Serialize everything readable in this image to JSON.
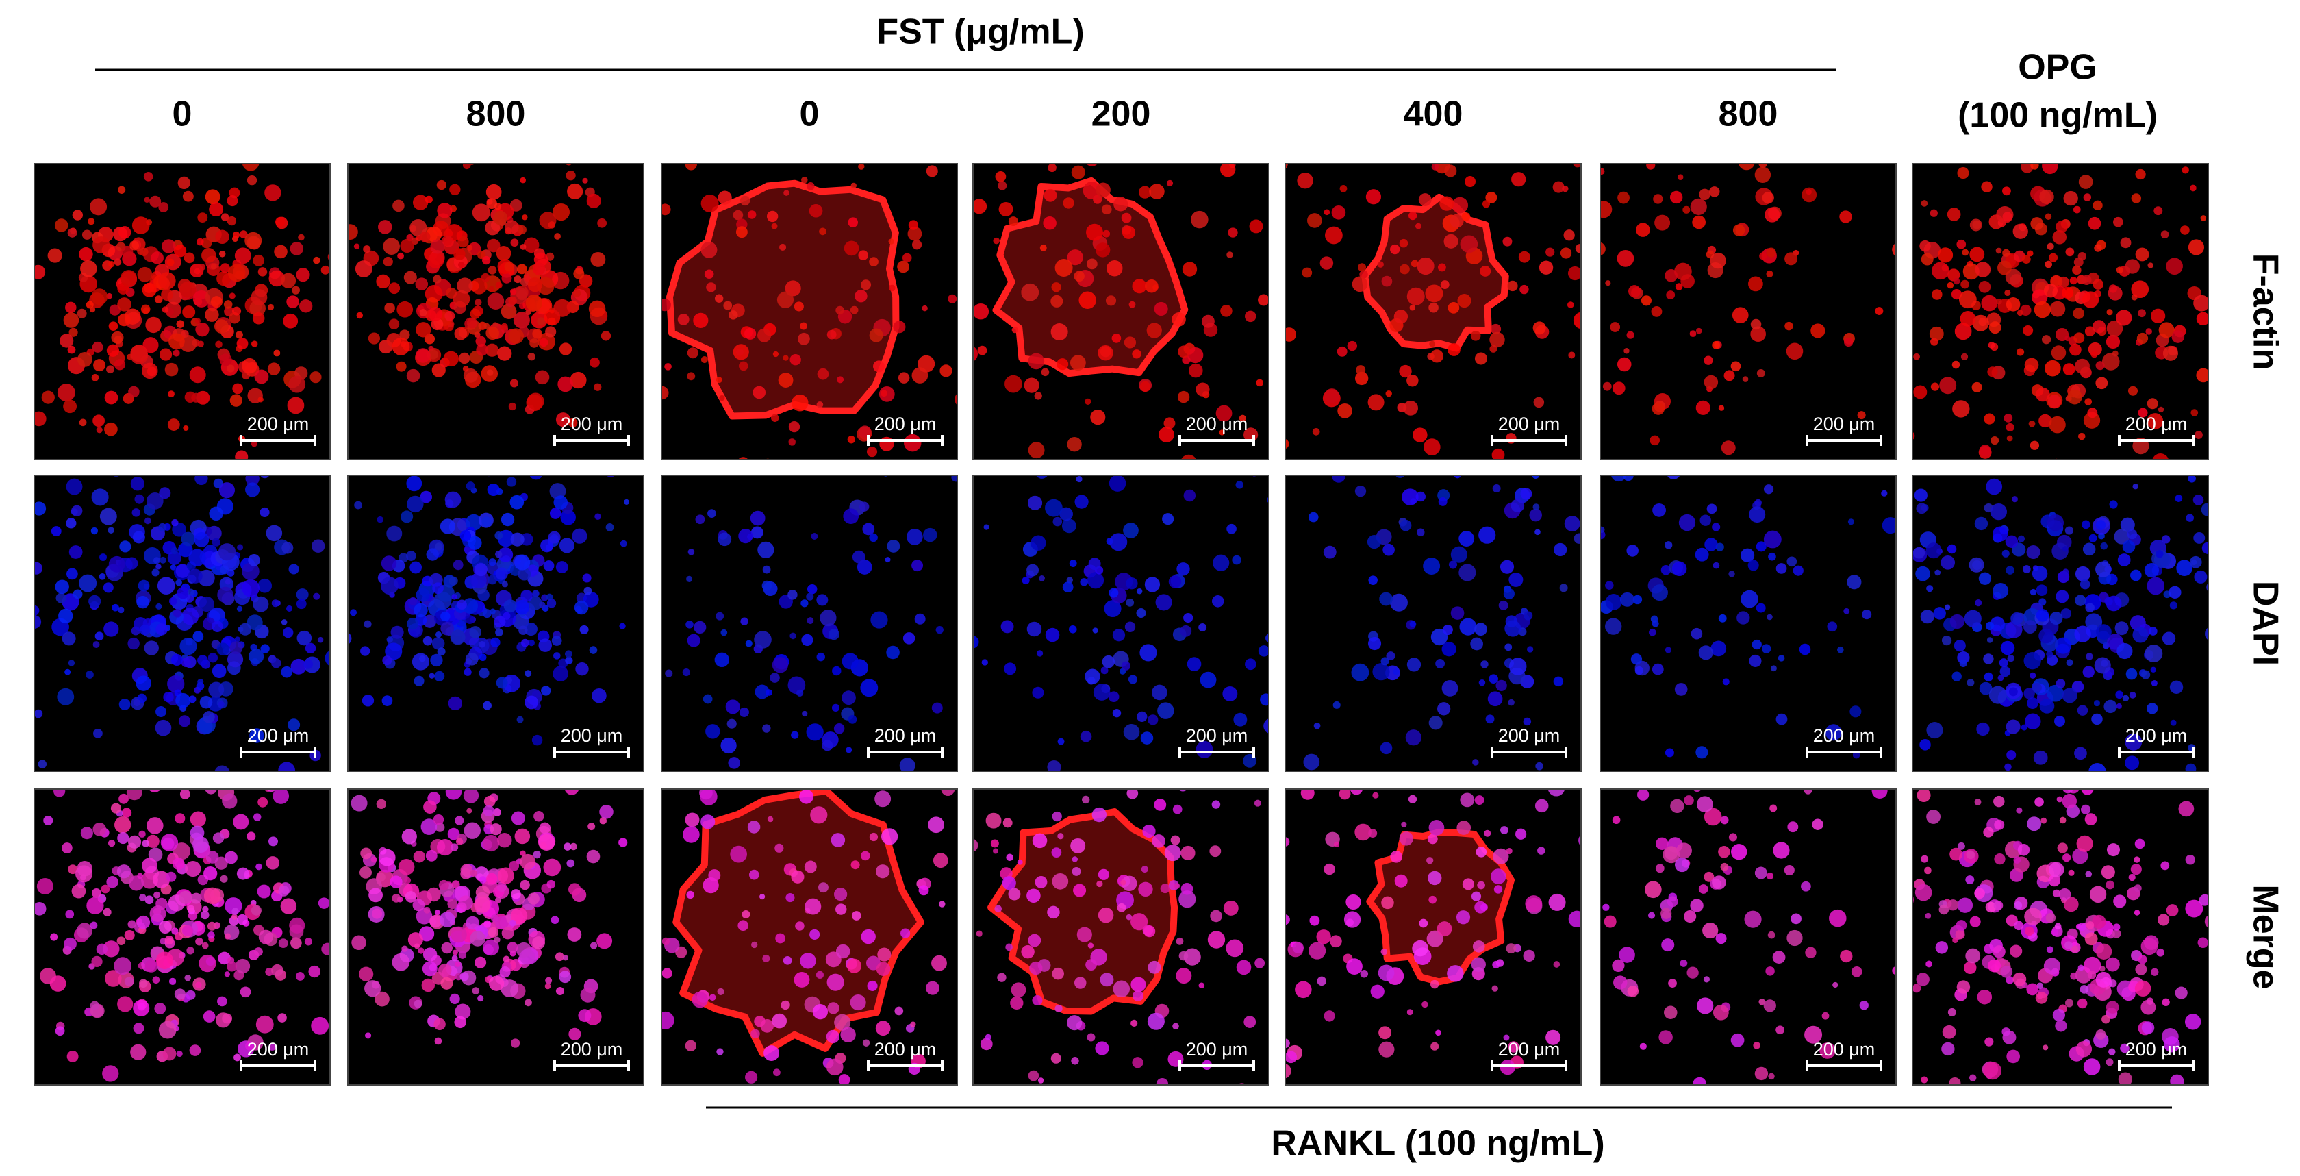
{
  "header": {
    "title": "FST (μg/mL)",
    "opg_label": [
      "OPG",
      "(100 ng/mL)"
    ]
  },
  "columns": [
    "0",
    "800",
    "0",
    "200",
    "400",
    "800"
  ],
  "rows": [
    "F-actin",
    "DAPI",
    "Merge"
  ],
  "scale_bar_label": "200 μm",
  "footer": {
    "title": "RANKL (100 ng/mL)"
  }
}
